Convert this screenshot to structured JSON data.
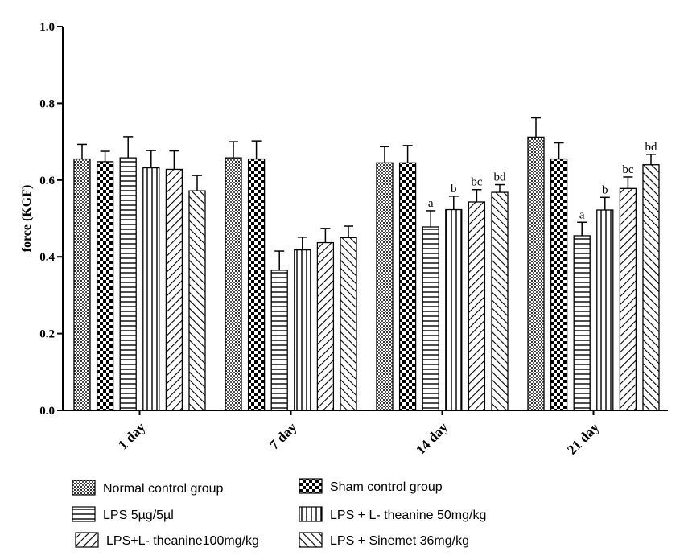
{
  "chart_data": {
    "type": "bar",
    "ylabel": "force (KGF)",
    "xlabel": "",
    "ylim": [
      0,
      1.0
    ],
    "yticks": [
      "0.0",
      "0.2",
      "0.4",
      "0.6",
      "0.8",
      "1.0"
    ],
    "categories": [
      "1 day",
      "7 day",
      "14 day",
      "21 day"
    ],
    "grid": false,
    "legend_position": "bottom",
    "series": [
      {
        "name": "Normal control group",
        "pattern": "dots",
        "values": [
          0.655,
          0.658,
          0.645,
          0.712
        ],
        "errors": [
          0.038,
          0.042,
          0.042,
          0.05
        ],
        "labels": [
          "",
          "",
          "",
          ""
        ]
      },
      {
        "name": "Sham control group",
        "pattern": "checker",
        "values": [
          0.648,
          0.655,
          0.645,
          0.655
        ],
        "errors": [
          0.027,
          0.047,
          0.045,
          0.042
        ],
        "labels": [
          "",
          "",
          "",
          ""
        ]
      },
      {
        "name": "LPS 5µg/5µl",
        "pattern": "hlines",
        "values": [
          0.658,
          0.365,
          0.478,
          0.455
        ],
        "errors": [
          0.055,
          0.05,
          0.042,
          0.035
        ],
        "labels": [
          "",
          "",
          "a",
          "a"
        ]
      },
      {
        "name": "LPS + L- theanine 50mg/kg",
        "pattern": "vlines",
        "values": [
          0.632,
          0.418,
          0.523,
          0.522
        ],
        "errors": [
          0.045,
          0.033,
          0.035,
          0.033
        ],
        "labels": [
          "",
          "",
          "b",
          "b"
        ]
      },
      {
        "name": "LPS+L- theanine100mg/kg",
        "pattern": "diag-up",
        "values": [
          0.628,
          0.437,
          0.543,
          0.578
        ],
        "errors": [
          0.048,
          0.037,
          0.032,
          0.03
        ],
        "labels": [
          "",
          "",
          "bc",
          "bc"
        ]
      },
      {
        "name": "LPS  + Sinemet 36mg/kg",
        "pattern": "diag-down",
        "values": [
          0.572,
          0.45,
          0.568,
          0.64
        ],
        "errors": [
          0.04,
          0.03,
          0.02,
          0.027
        ],
        "labels": [
          "",
          "",
          "bd",
          "bd"
        ]
      }
    ]
  }
}
